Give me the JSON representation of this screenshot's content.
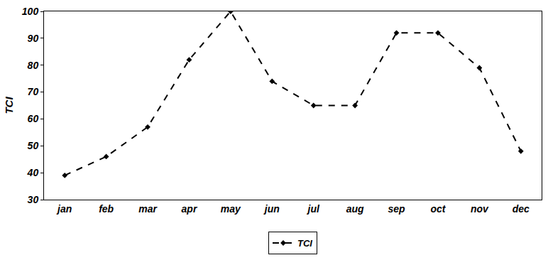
{
  "chart_data": {
    "type": "line",
    "y_label": "TCI",
    "categories": [
      "jan",
      "feb",
      "mar",
      "apr",
      "may",
      "jun",
      "jul",
      "aug",
      "sep",
      "oct",
      "nov",
      "dec"
    ],
    "series": [
      {
        "name": "TCI",
        "color": "#000000",
        "marker": "diamond",
        "line_style": "dash",
        "values": [
          39,
          46,
          57,
          82,
          100,
          74,
          65,
          65,
          92,
          92,
          79,
          48
        ]
      }
    ],
    "ylim": [
      30,
      100
    ],
    "yticks": [
      30,
      40,
      50,
      60,
      70,
      80,
      90,
      100
    ],
    "grid": false,
    "legend": "bottom"
  }
}
